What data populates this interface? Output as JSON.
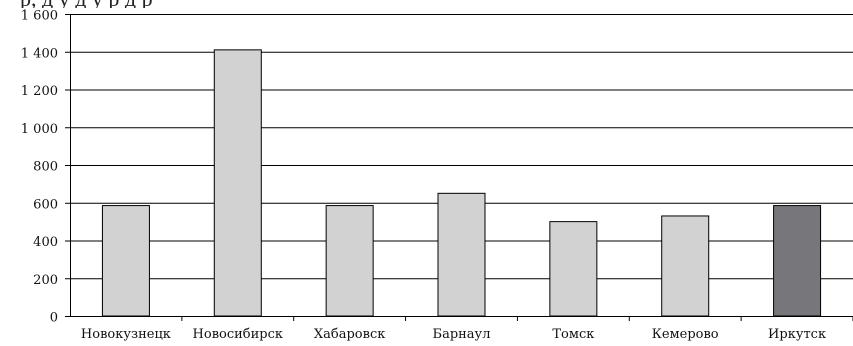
{
  "top_strip_text": "р,                  д       у          д       у                  р                                    д              р",
  "chart_data": {
    "type": "bar",
    "categories": [
      "Новокузнецк",
      "Новосибирск",
      "Хабаровск",
      "Барнаул",
      "Томск",
      "Кемерово",
      "Иркутск"
    ],
    "values": [
      585,
      1410,
      585,
      650,
      500,
      530,
      585
    ],
    "highlight_index": 6,
    "ylim": [
      0,
      1600
    ],
    "yticks": [
      0,
      200,
      400,
      600,
      800,
      1000,
      1200,
      1400,
      1600
    ],
    "ytick_labels": [
      "0",
      "200",
      "400",
      "600",
      "800",
      "1 000",
      "1 200",
      "1 400",
      "1 600"
    ],
    "grid": true,
    "colors": {
      "bar": "#d2d2d2",
      "highlight": "#77777b",
      "grid": "#000000",
      "bar_stroke": "#000000"
    },
    "title": "",
    "xlabel": "",
    "ylabel": ""
  }
}
